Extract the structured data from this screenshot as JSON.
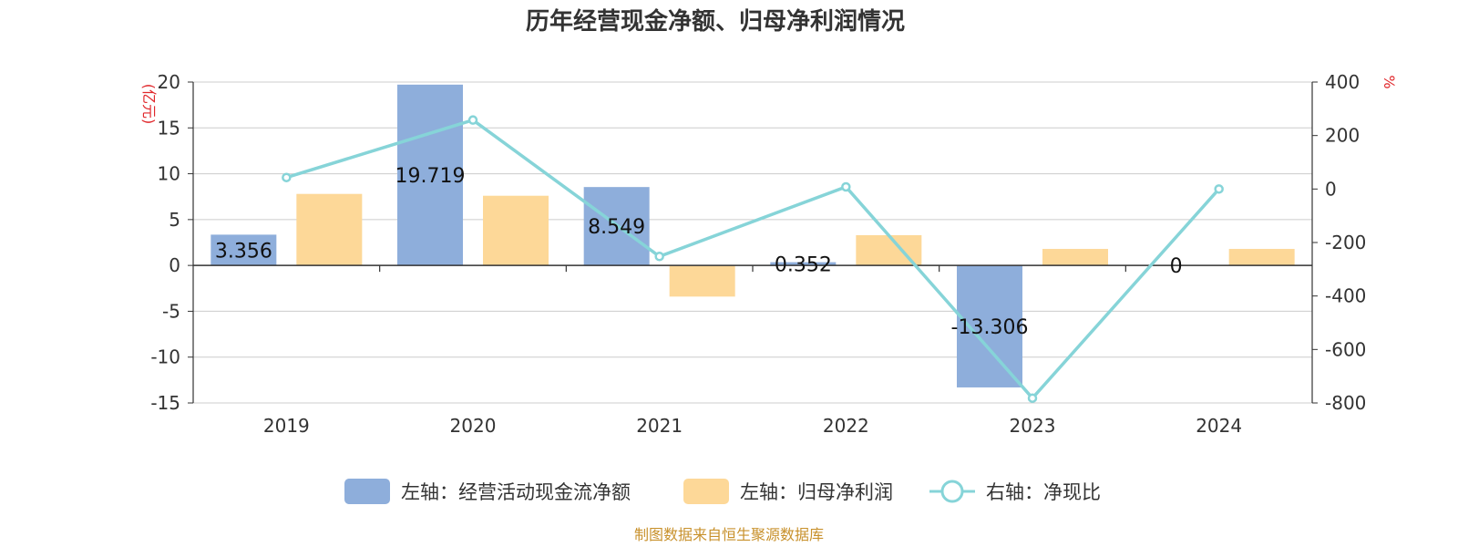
{
  "chart_data": {
    "type": "bar",
    "title": "历年经营现金净额、归母净利润情况",
    "categories": [
      "2019",
      "2020",
      "2021",
      "2022",
      "2023",
      "2024"
    ],
    "series": [
      {
        "name": "左轴：经营活动现金流净额",
        "axis": "left",
        "kind": "bar",
        "color": "#8eaedb",
        "values": [
          3.356,
          19.719,
          8.549,
          0.352,
          -13.306,
          0
        ],
        "labels": [
          "3.356",
          "19.719",
          "8.549",
          "0.352",
          "-13.306",
          "0"
        ]
      },
      {
        "name": "左轴：归母净利润",
        "axis": "left",
        "kind": "bar",
        "color": "#fdd898",
        "values": [
          7.8,
          7.6,
          -3.4,
          3.3,
          1.8,
          1.8
        ]
      },
      {
        "name": "右轴：净现比",
        "axis": "right",
        "kind": "line",
        "color": "#86d4d8",
        "values": [
          43,
          258,
          -252,
          8,
          -782,
          0
        ]
      }
    ],
    "left_axis": {
      "unit": "(亿元)",
      "min": -15,
      "max": 20,
      "ticks": [
        20,
        15,
        10,
        5,
        0,
        -5,
        -10,
        -15
      ]
    },
    "right_axis": {
      "unit": "%",
      "min": -800,
      "max": 400,
      "ticks": [
        400,
        200,
        0,
        -200,
        -400,
        -600,
        -800
      ]
    },
    "grid": true,
    "legend_position": "bottom"
  },
  "source_note": "制图数据来自恒生聚源数据库"
}
